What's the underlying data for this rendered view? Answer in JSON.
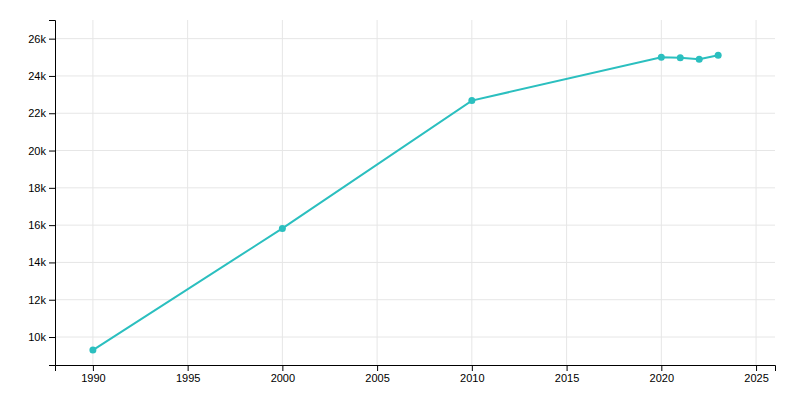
{
  "chart_data": {
    "type": "line",
    "x": [
      1990,
      2000,
      2010,
      2020,
      2021,
      2022,
      2023
    ],
    "values": [
      9301,
      15826,
      22678,
      25005,
      24982,
      24900,
      25108
    ],
    "color": "#2bbfbf",
    "marker": "circle",
    "xlim": [
      1988,
      2026
    ],
    "ylim": [
      8500,
      27000
    ],
    "xticks": [
      1990,
      1995,
      2000,
      2005,
      2010,
      2015,
      2020,
      2025
    ],
    "yticks": [
      {
        "value": 10000,
        "label": "10k"
      },
      {
        "value": 12000,
        "label": "12k"
      },
      {
        "value": 14000,
        "label": "14k"
      },
      {
        "value": 16000,
        "label": "16k"
      },
      {
        "value": 18000,
        "label": "18k"
      },
      {
        "value": 20000,
        "label": "20k"
      },
      {
        "value": 22000,
        "label": "22k"
      },
      {
        "value": 24000,
        "label": "24k"
      },
      {
        "value": 26000,
        "label": "26k"
      }
    ],
    "grid": true
  }
}
